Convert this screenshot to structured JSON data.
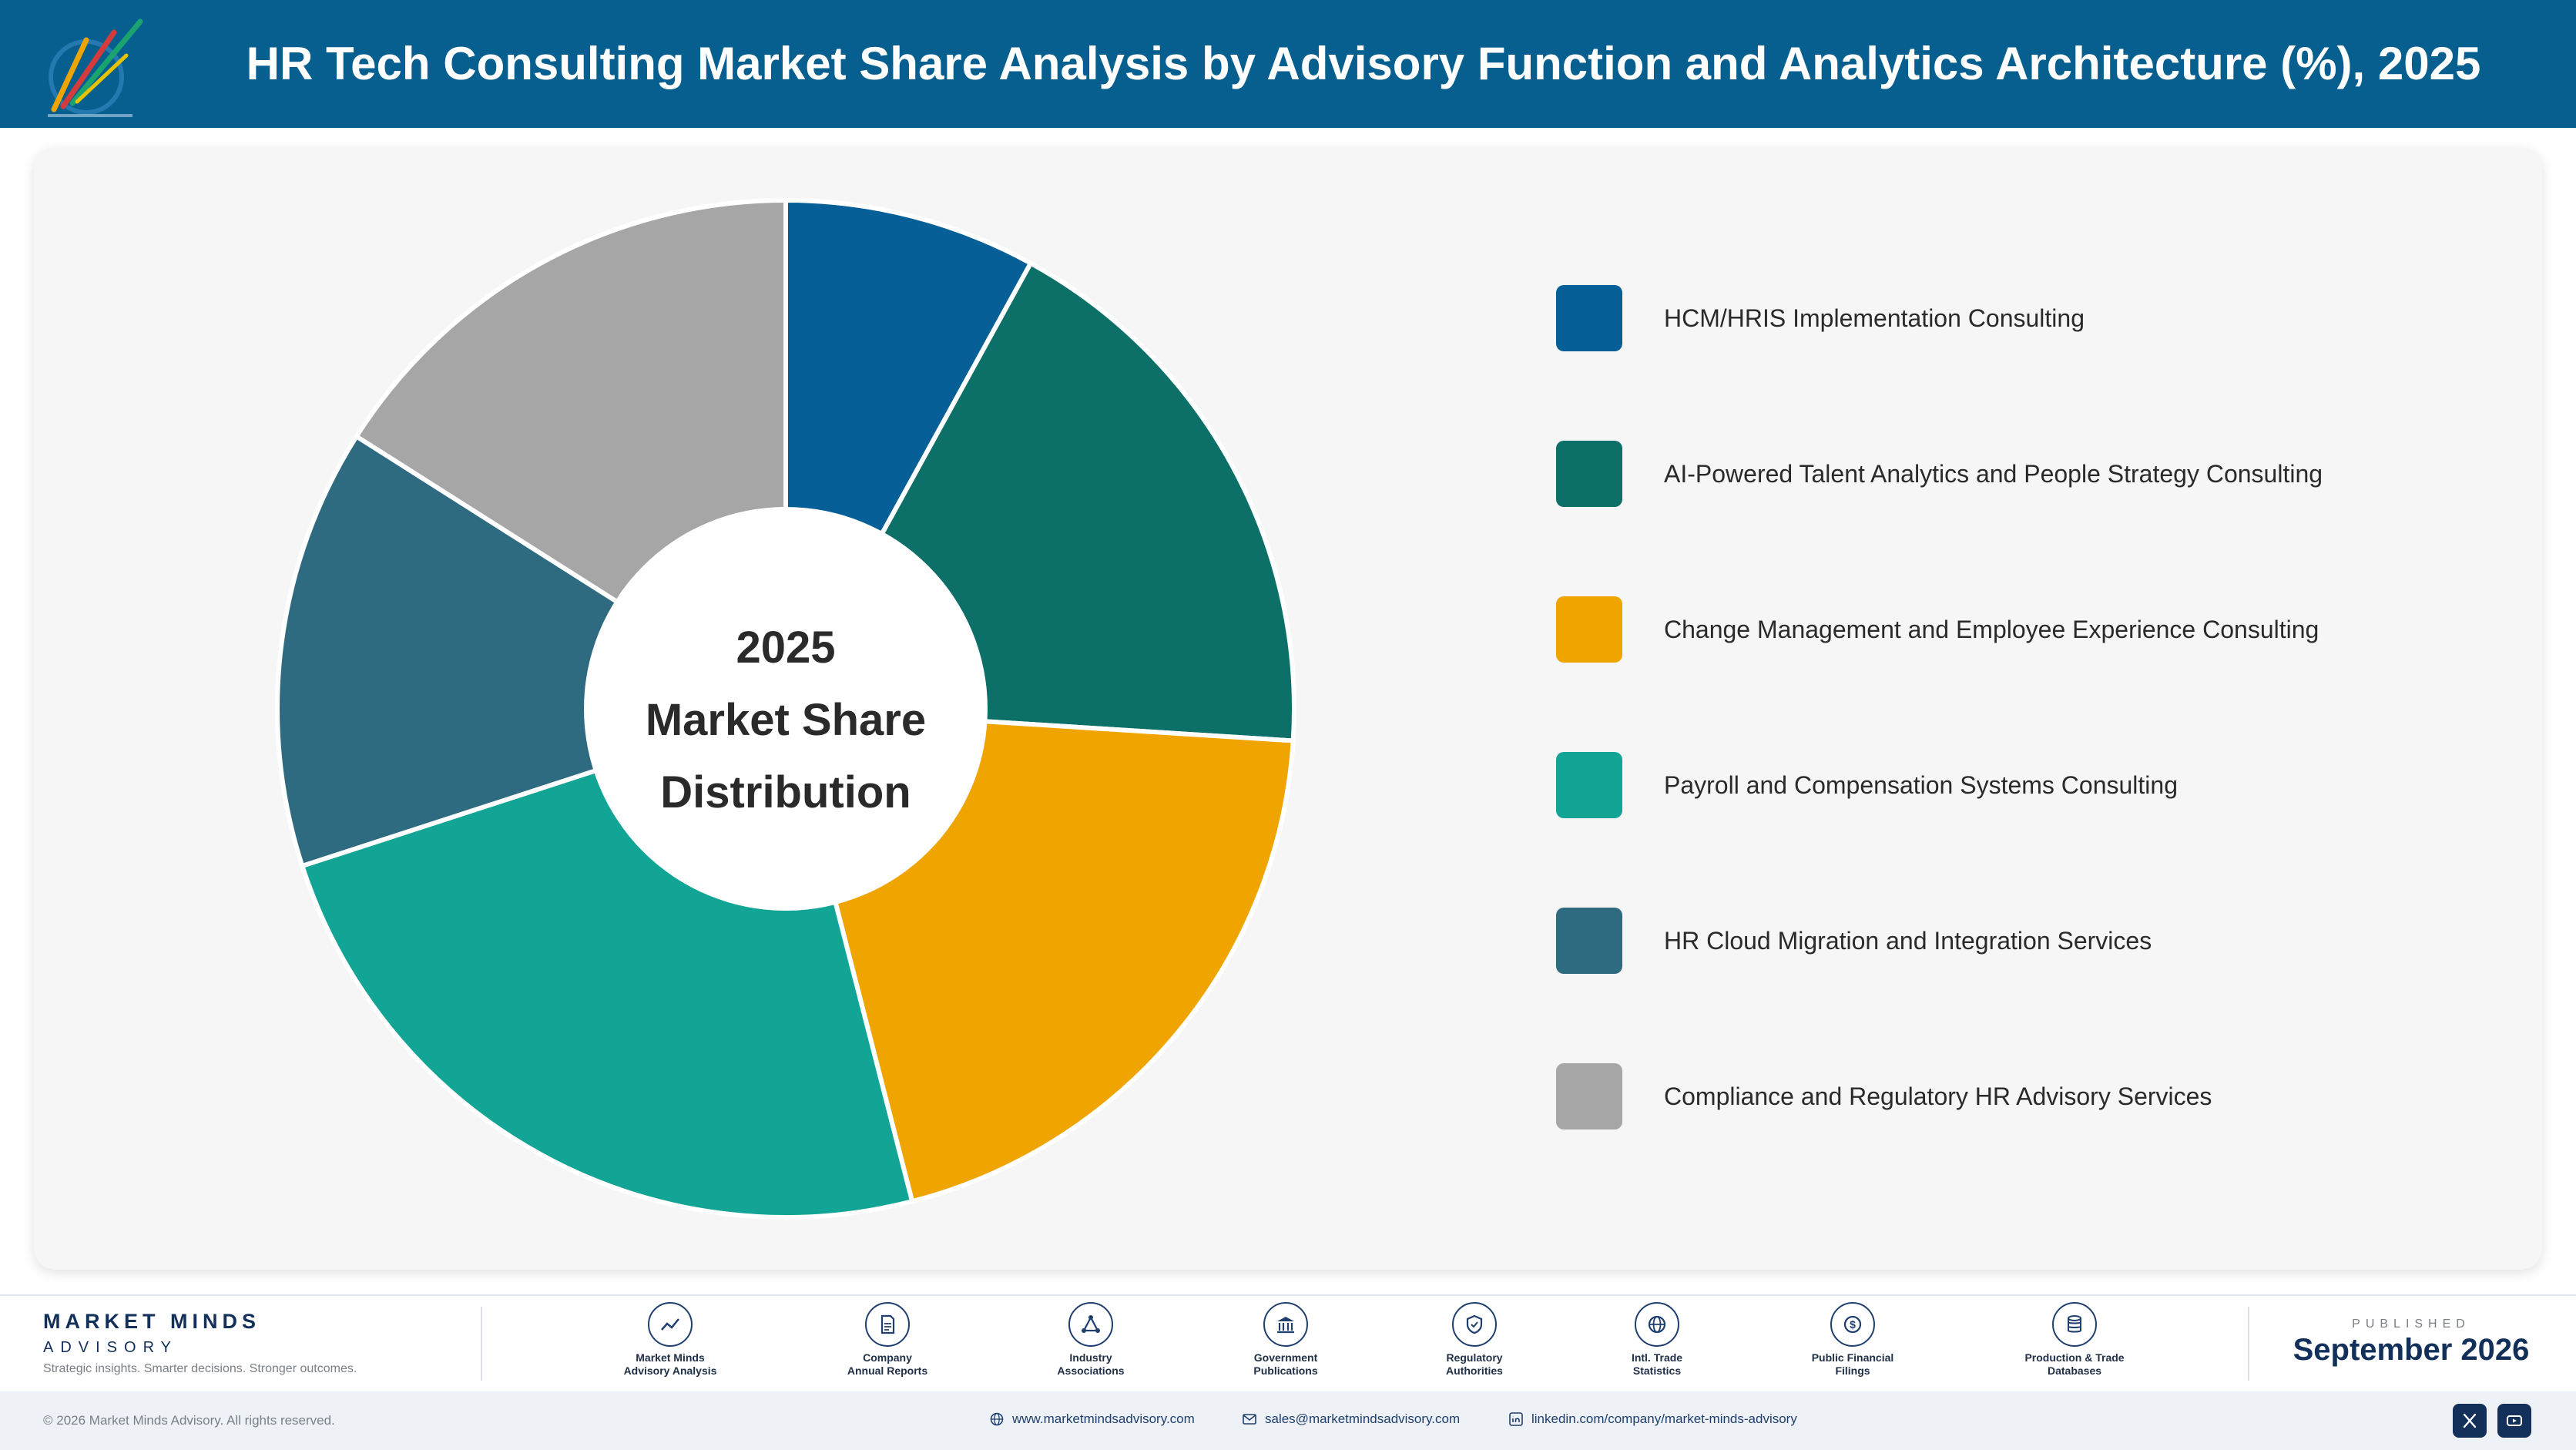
{
  "header": {
    "title": "HR Tech Consulting Market Share Analysis by Advisory Function and Analytics Architecture (%), 2025"
  },
  "chart_data": {
    "type": "pie",
    "center_text": [
      "2025",
      "Market Share",
      "Distribution"
    ],
    "categories": [
      "HCM/HRIS Implementation Consulting",
      "AI-Powered Talent Analytics and People Strategy Consulting",
      "Change Management and Employee Experience Consulting",
      "Payroll and Compensation Systems Consulting",
      "HR Cloud Migration and Integration Services",
      "Compliance and Regulatory HR Advisory Services"
    ],
    "values": [
      8,
      18,
      20,
      24,
      14,
      16
    ],
    "colors": [
      "#065f96",
      "#0d7068",
      "#f0a400",
      "#12a595",
      "#2f6b80",
      "#a6a6a6"
    ],
    "legend_position": "right"
  },
  "footer": {
    "brand_name": "MARKET MINDS",
    "brand_sub": "ADVISORY",
    "brand_tagline": "Strategic insights. Smarter decisions. Stronger outcomes.",
    "sources": [
      {
        "icon": "chart-icon",
        "line1": "Market Minds",
        "line2": "Advisory Analysis"
      },
      {
        "icon": "document-icon",
        "line1": "Company",
        "line2": "Annual Reports"
      },
      {
        "icon": "network-icon",
        "line1": "Industry",
        "line2": "Associations"
      },
      {
        "icon": "government-icon",
        "line1": "Government",
        "line2": "Publications"
      },
      {
        "icon": "shield-icon",
        "line1": "Regulatory",
        "line2": "Authorities"
      },
      {
        "icon": "globe-icon",
        "line1": "Intl. Trade",
        "line2": "Statistics"
      },
      {
        "icon": "coin-icon",
        "line1": "Public Financial",
        "line2": "Filings"
      },
      {
        "icon": "database-icon",
        "line1": "Production & Trade",
        "line2": "Databases"
      }
    ],
    "published_label": "PUBLISHED",
    "published_date": "September 2026",
    "copyright": "© 2026 Market Minds Advisory. All rights reserved.",
    "website": "www.marketmindsadvisory.com",
    "email": "sales@marketmindsadvisory.com",
    "linkedin": "linkedin.com/company/market-minds-advisory"
  }
}
